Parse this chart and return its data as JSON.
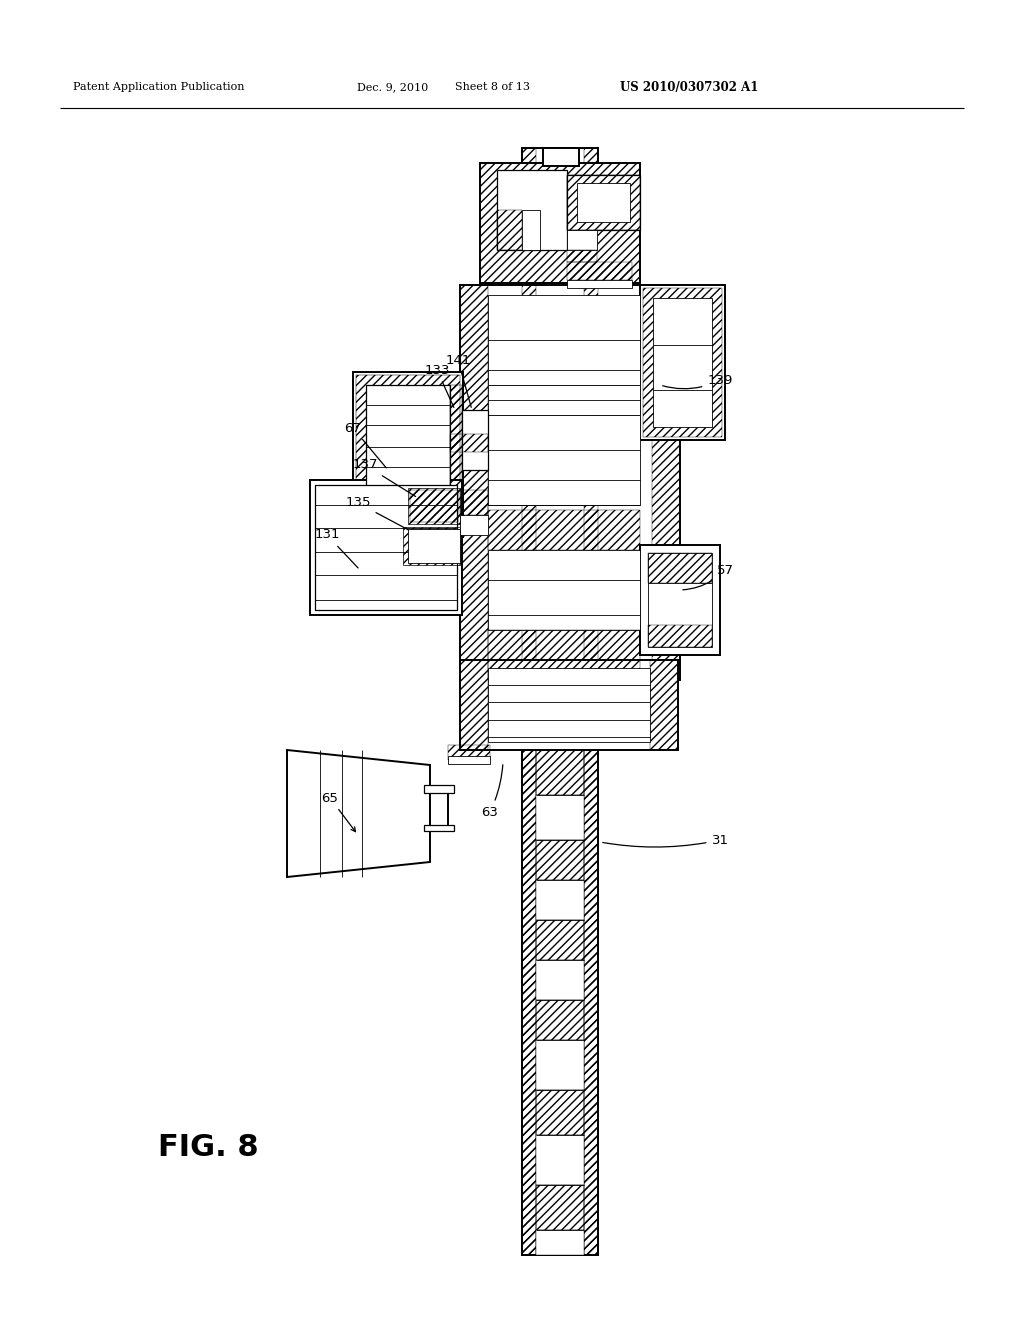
{
  "bg_color": "#ffffff",
  "line_color": "#000000",
  "header_left": "Patent Application Publication",
  "header_mid1": "Dec. 9, 2010",
  "header_mid2": "Sheet 8 of 13",
  "header_right": "US 2010/0307302 A1",
  "fig_label": "FIG. 8",
  "figsize": [
    10.24,
    13.2
  ],
  "dpi": 100
}
